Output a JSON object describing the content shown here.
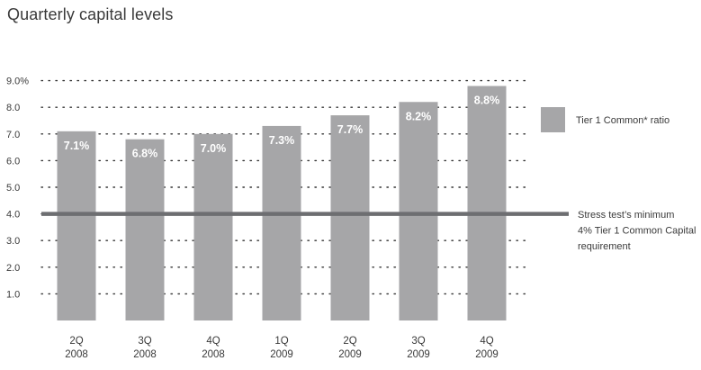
{
  "chart_data": {
    "type": "bar",
    "title": "Quarterly capital levels",
    "categories": [
      [
        "2Q",
        "2008"
      ],
      [
        "3Q",
        "2008"
      ],
      [
        "4Q",
        "2008"
      ],
      [
        "1Q",
        "2009"
      ],
      [
        "2Q",
        "2009"
      ],
      [
        "3Q",
        "2009"
      ],
      [
        "4Q",
        "2009"
      ]
    ],
    "series": [
      {
        "name": "Tier 1 Common* ratio",
        "values": [
          7.1,
          6.8,
          7.0,
          7.3,
          7.7,
          8.2,
          8.8
        ],
        "labels": [
          "7.1%",
          "6.8%",
          "7.0%",
          "7.3%",
          "7.7%",
          "8.2%",
          "8.8%"
        ],
        "color": "#a6a6a8"
      }
    ],
    "reference_line": {
      "value": 4.0,
      "color": "#6d6e71",
      "label_lines": [
        "Stress test’s minimum",
        "4% Tier 1 Common Capital",
        "requirement"
      ]
    },
    "yticks": [
      {
        "value": 9.0,
        "label": "9.0%"
      },
      {
        "value": 8.0,
        "label": "8.0"
      },
      {
        "value": 7.0,
        "label": "7.0"
      },
      {
        "value": 6.0,
        "label": "6.0"
      },
      {
        "value": 5.0,
        "label": "5.0"
      },
      {
        "value": 4.0,
        "label": "4.0"
      },
      {
        "value": 3.0,
        "label": "3.0"
      },
      {
        "value": 2.0,
        "label": "2.0"
      },
      {
        "value": 1.0,
        "label": "1.0"
      }
    ],
    "ylim": [
      0,
      9
    ],
    "grid": "dotted",
    "legend_position": "right",
    "xlabel": "",
    "ylabel": ""
  }
}
